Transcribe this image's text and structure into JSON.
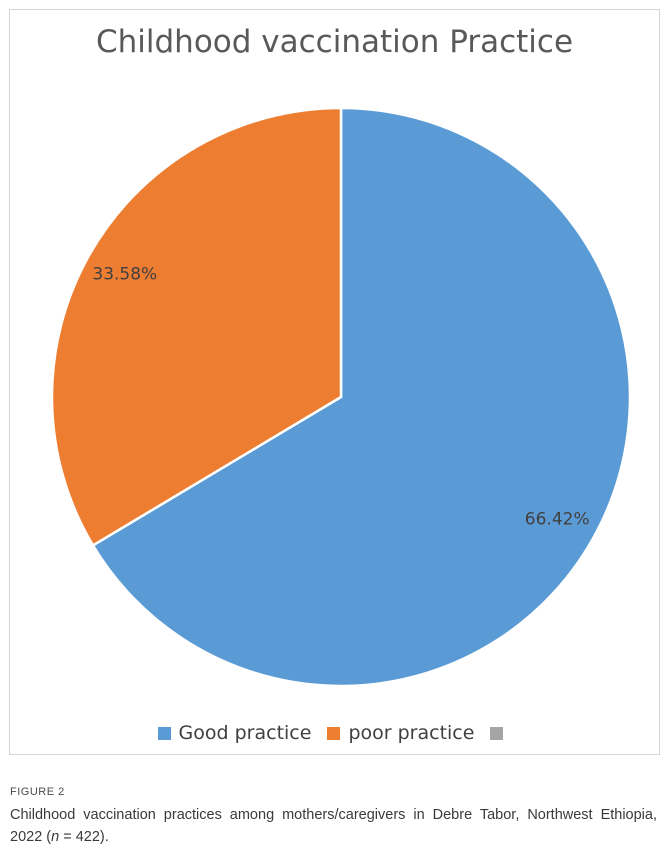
{
  "chart_data": {
    "type": "pie",
    "title": "Childhood vaccination Practice",
    "slices": [
      {
        "name": "Good practice",
        "value": 66.42,
        "label": "66.42%",
        "color": "#5b9bd5"
      },
      {
        "name": "poor practice",
        "value": 33.58,
        "label": "33.58%",
        "color": "#ed7d31"
      }
    ],
    "legend": {
      "placement": "bottom",
      "items": [
        {
          "label": "Good practice",
          "color": "#5b9bd5"
        },
        {
          "label": "poor practice",
          "color": "#ed7d31"
        },
        {
          "label": "",
          "color": "#a5a5a5"
        }
      ]
    }
  },
  "figure": {
    "label": "FIGURE 2",
    "caption_main": "Childhood vaccination practices among mothers/caregivers in Debre Tabor, Northwest Ethiopia, 2022 (",
    "caption_n": "n",
    "caption_rest": " = 422)."
  }
}
